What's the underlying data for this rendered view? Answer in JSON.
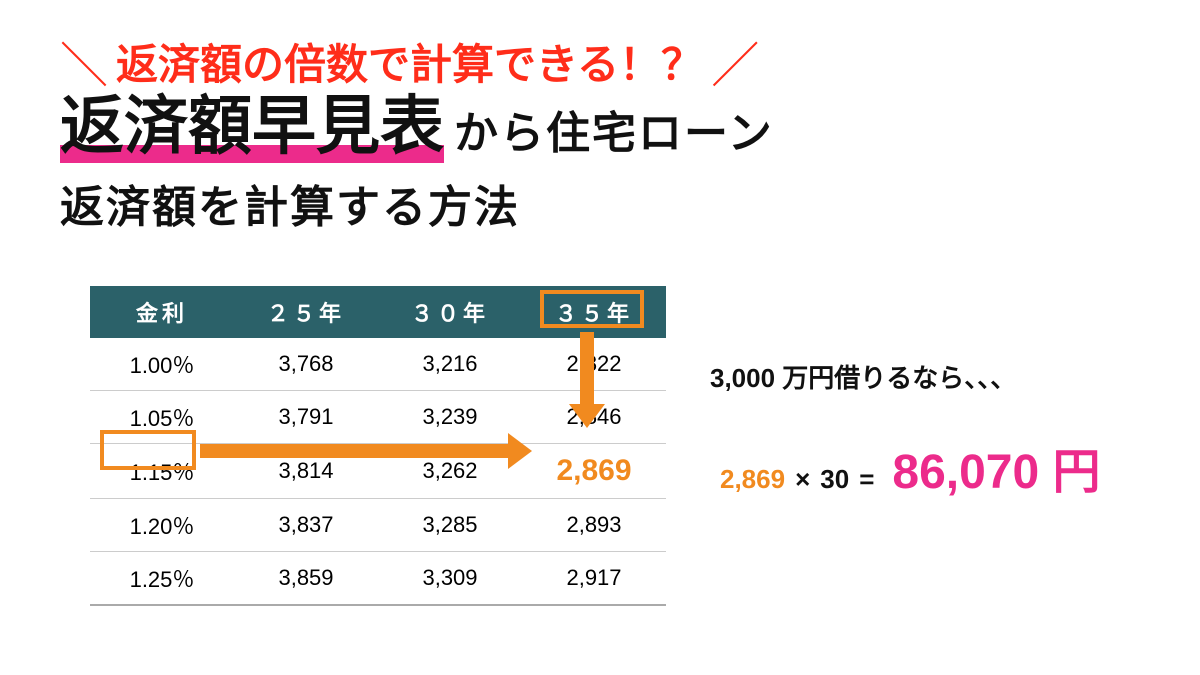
{
  "colors": {
    "accent_red": "#ff2d1a",
    "text_black": "#111111",
    "underline_pink": "#ec2b8b",
    "table_header_bg": "#2b6169",
    "table_header_fg": "#ffffff",
    "table_border": "#cccccc",
    "highlight_orange": "#f18a1f",
    "result_magenta": "#ec2b8b",
    "calc_black": "#111111"
  },
  "headline": {
    "slash_left": "＼",
    "slash_right": "／",
    "text": "返済額の倍数で計算できる！？"
  },
  "title": {
    "underlined": "返済額早見表",
    "after": "から住宅ローン",
    "line2": "返済額を計算する方法"
  },
  "table": {
    "headers": [
      "金利",
      "２５年",
      "３０年",
      "３５年"
    ],
    "rows": [
      [
        "1.00％",
        "3,768",
        "3,216",
        "2,822"
      ],
      [
        "1.05％",
        "3,791",
        "3,239",
        "2,846"
      ],
      [
        "1.15％",
        "3,814",
        "3,262",
        "2,869"
      ],
      [
        "1.20％",
        "3,837",
        "3,285",
        "2,893"
      ],
      [
        "1.25％",
        "3,859",
        "3,309",
        "2,917"
      ]
    ],
    "highlight_row": 2,
    "highlight_col": 3
  },
  "note": "3,000 万円借りるなら、、、",
  "calc": {
    "a": "2,869",
    "op": "×",
    "b": "30",
    "eq": "=",
    "result": "86,070 円"
  }
}
